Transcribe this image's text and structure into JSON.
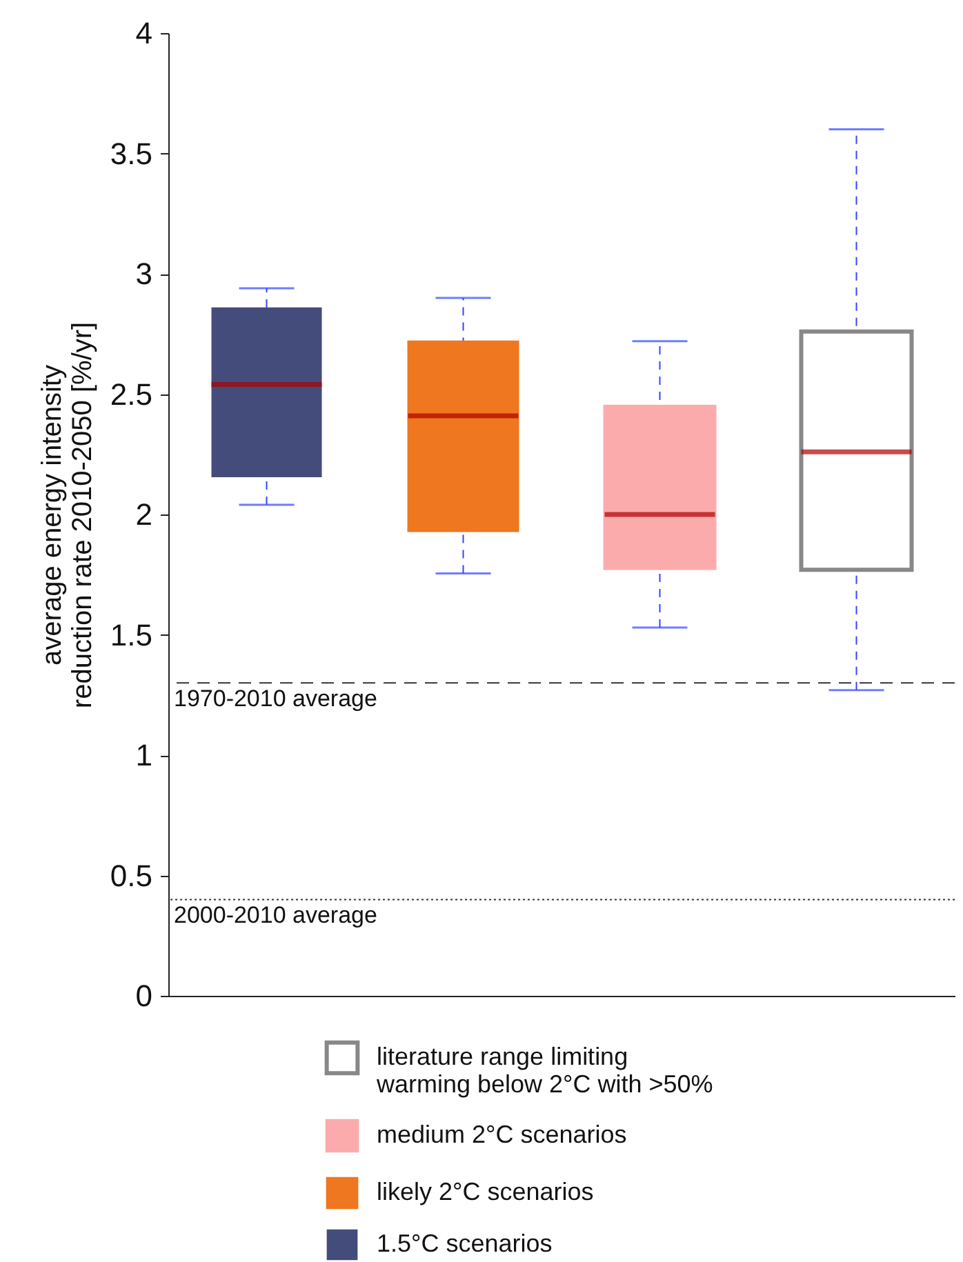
{
  "chart_data": {
    "type": "box",
    "ylabel": "average energy intensity\nreduction rate 2010-2050 [%/yr]",
    "categories": [
      null,
      null,
      null,
      null
    ],
    "ylim": [
      0,
      4
    ],
    "yticks": [
      0,
      0.5,
      1,
      1.5,
      2,
      2.5,
      3,
      3.5,
      4
    ],
    "legend": "bottom",
    "tick_labels": "y",
    "series": [
      {
        "name": "literature range limiting\nwarming below 2°C with >50%",
        "color": "#ffffff",
        "boxes": [
          null,
          null,
          null,
          {
            "low": 1.27,
            "q1": 1.77,
            "median": 2.26,
            "q3": 2.76,
            "high": 3.6
          }
        ]
      },
      {
        "name": "medium 2°C scenarios",
        "color": "#fcabad",
        "boxes": [
          null,
          null,
          {
            "low": 1.53,
            "q1": 1.775,
            "median": 2.0,
            "q3": 2.45,
            "high": 2.72
          },
          null
        ]
      },
      {
        "name": "likely 2°C scenarios",
        "color": "#ee7720",
        "boxes": [
          null,
          {
            "low": 1.755,
            "q1": 1.93,
            "median": 2.41,
            "q3": 2.72,
            "high": 2.9
          },
          null,
          null
        ]
      },
      {
        "name": "1.5°C scenarios",
        "color": "#434c7a",
        "boxes": [
          {
            "low": 2.04,
            "q1": 2.155,
            "median": 2.54,
            "q3": 2.86,
            "high": 2.94
          },
          null,
          null,
          null
        ]
      }
    ],
    "ref_lines": [
      {
        "axis": "y",
        "value": 1.3,
        "label": "1970-2010 average",
        "line_style": "dashed"
      },
      {
        "axis": "y",
        "value": 0.4,
        "label": "2000-2010 average",
        "line_style": "dotted"
      }
    ]
  }
}
